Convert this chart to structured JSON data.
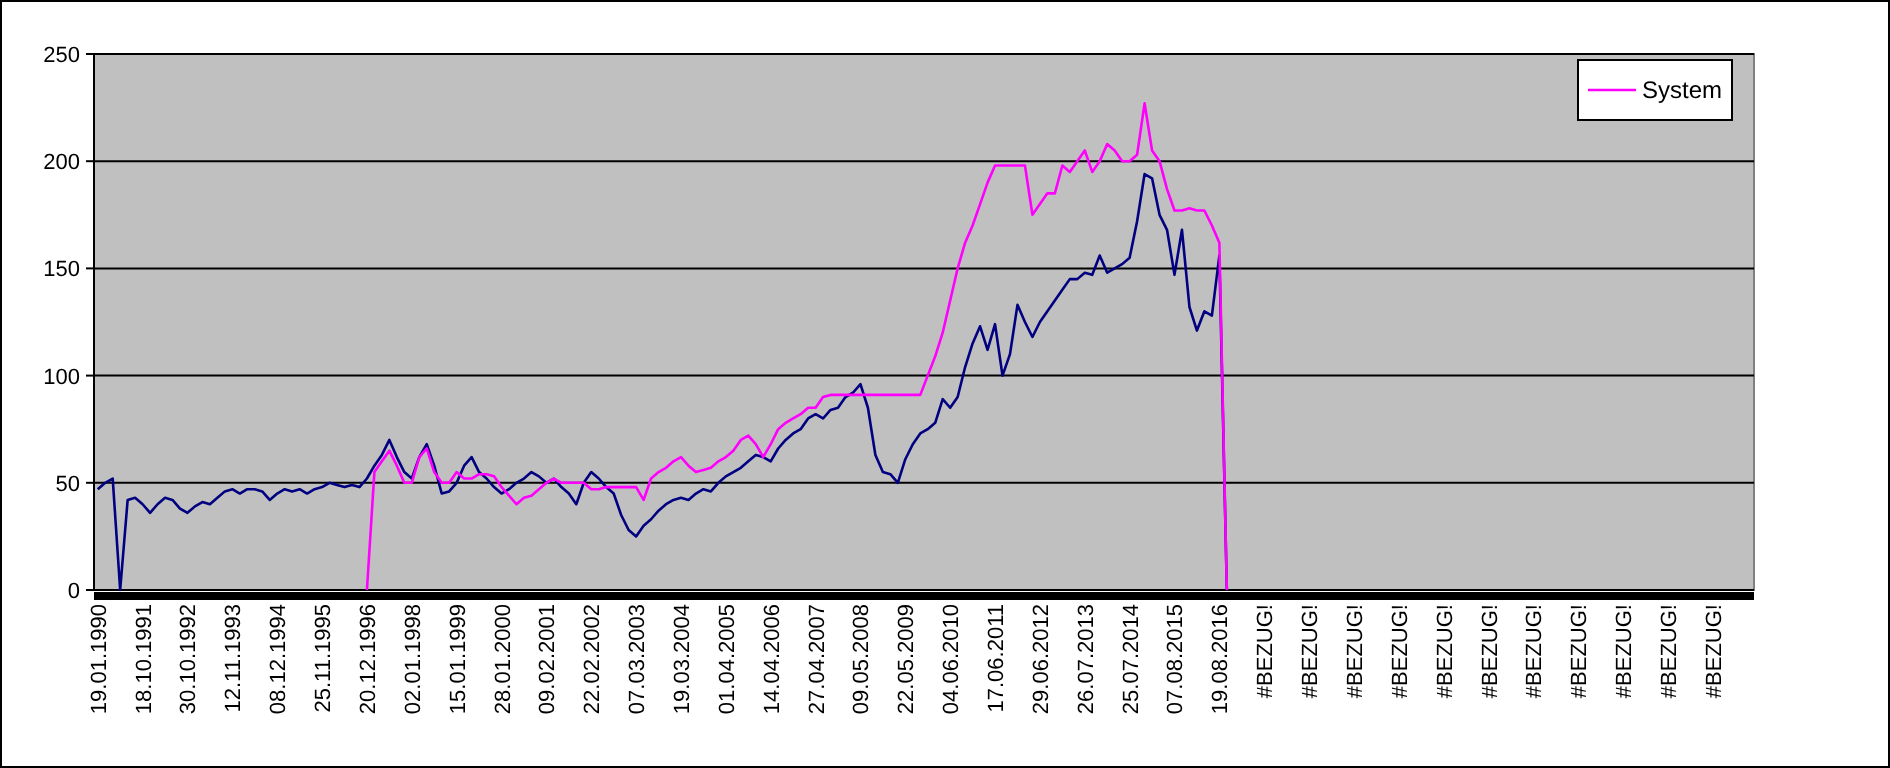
{
  "chart_data": {
    "type": "line",
    "categories": [
      "19.01.1990",
      null,
      null,
      null,
      null,
      null,
      "18.10.1991",
      null,
      null,
      null,
      null,
      null,
      "30.10.1992",
      null,
      null,
      null,
      null,
      null,
      "12.11.1993",
      null,
      null,
      null,
      null,
      null,
      "08.12.1994",
      null,
      null,
      null,
      null,
      null,
      "25.11.1995",
      null,
      null,
      null,
      null,
      null,
      "20.12.1996",
      null,
      null,
      null,
      null,
      null,
      "02.01.1998",
      null,
      null,
      null,
      null,
      null,
      "15.01.1999",
      null,
      null,
      null,
      null,
      null,
      "28.01.2000",
      null,
      null,
      null,
      null,
      null,
      "09.02.2001",
      null,
      null,
      null,
      null,
      null,
      "22.02.2002",
      null,
      null,
      null,
      null,
      null,
      "07.03.2003",
      null,
      null,
      null,
      null,
      null,
      "19.03.2004",
      null,
      null,
      null,
      null,
      null,
      "01.04.2005",
      null,
      null,
      null,
      null,
      null,
      "14.04.2006",
      null,
      null,
      null,
      null,
      null,
      "27.04.2007",
      null,
      null,
      null,
      null,
      null,
      "09.05.2008",
      null,
      null,
      null,
      null,
      null,
      "22.05.2009",
      null,
      null,
      null,
      null,
      null,
      "04.06.2010",
      null,
      null,
      null,
      null,
      null,
      "17.06.2011",
      null,
      null,
      null,
      null,
      null,
      "29.06.2012",
      null,
      null,
      null,
      null,
      null,
      "26.07.2013",
      null,
      null,
      null,
      null,
      null,
      "25.07.2014",
      null,
      null,
      null,
      null,
      null,
      "07.08.2015",
      null,
      null,
      null,
      null,
      null,
      "19.08.2016",
      null,
      null,
      null,
      null,
      null,
      "#BEZUG!",
      null,
      null,
      null,
      null,
      null,
      "#BEZUG!",
      null,
      null,
      null,
      null,
      null,
      "#BEZUG!",
      null,
      null,
      null,
      null,
      null,
      "#BEZUG!",
      null,
      null,
      null,
      null,
      null,
      "#BEZUG!",
      null,
      null,
      null,
      null,
      null,
      "#BEZUG!",
      null,
      null,
      null,
      null,
      null,
      "#BEZUG!",
      null,
      null,
      null,
      null,
      null,
      "#BEZUG!",
      null,
      null,
      null,
      null,
      null,
      "#BEZUG!",
      null,
      null,
      null,
      null,
      null,
      "#BEZUG!",
      null,
      null,
      null,
      null,
      null,
      "#BEZUG!",
      null,
      null,
      null,
      null,
      null
    ],
    "series": [
      {
        "color": "#000080",
        "values": [
          47,
          50,
          52,
          0,
          42,
          43,
          40,
          36,
          40,
          43,
          42,
          38,
          36,
          39,
          41,
          40,
          43,
          46,
          47,
          45,
          47,
          47,
          46,
          42,
          45,
          47,
          46,
          47,
          45,
          47,
          48,
          50,
          49,
          48,
          49,
          48,
          52,
          58,
          63,
          70,
          62,
          55,
          52,
          62,
          68,
          58,
          45,
          46,
          50,
          58,
          62,
          55,
          52,
          48,
          45,
          47,
          50,
          52,
          55,
          53,
          50,
          52,
          48,
          45,
          40,
          50,
          55,
          52,
          48,
          45,
          35,
          28,
          25,
          30,
          33,
          37,
          40,
          42,
          43,
          42,
          45,
          47,
          46,
          50,
          53,
          55,
          57,
          60,
          63,
          62,
          60,
          66,
          70,
          73,
          75,
          80,
          82,
          80,
          84,
          85,
          90,
          92,
          96,
          85,
          63,
          55,
          54,
          50,
          61,
          68,
          73,
          75,
          78,
          89,
          85,
          90,
          104,
          115,
          123,
          112,
          124,
          100,
          110,
          133,
          125,
          118,
          125,
          130,
          135,
          140,
          145,
          145,
          148,
          147,
          156,
          148,
          150,
          152,
          155,
          172,
          194,
          192,
          175,
          168,
          147,
          168,
          132,
          121,
          130,
          128,
          156,
          0,
          null,
          null,
          null,
          null,
          null,
          null,
          null,
          null,
          null,
          null,
          null,
          null,
          null,
          null,
          null,
          null,
          null,
          null,
          null,
          null,
          null,
          null,
          null,
          null,
          null,
          null,
          null,
          null,
          null,
          null,
          null,
          null,
          null,
          null,
          null,
          null,
          null,
          null,
          null,
          null,
          null,
          null,
          null,
          null,
          null,
          null,
          null,
          null,
          null,
          null,
          null,
          null,
          null,
          null,
          null,
          null,
          null,
          null,
          null,
          null,
          null,
          null,
          null,
          null,
          null,
          null,
          null,
          null,
          null,
          null
        ]
      },
      {
        "name": "System",
        "color": "#ff00ff",
        "values": [
          null,
          null,
          null,
          null,
          null,
          null,
          null,
          null,
          null,
          null,
          null,
          null,
          null,
          null,
          null,
          null,
          null,
          null,
          null,
          null,
          null,
          null,
          null,
          null,
          null,
          null,
          null,
          null,
          null,
          null,
          null,
          null,
          null,
          null,
          null,
          null,
          0,
          55,
          60,
          65,
          58,
          50,
          50,
          62,
          66,
          55,
          50,
          50,
          55,
          52,
          52,
          54,
          54,
          53,
          48,
          44,
          40,
          43,
          44,
          47,
          50,
          52,
          50,
          50,
          50,
          50,
          47,
          47,
          48,
          48,
          48,
          48,
          48,
          42,
          52,
          55,
          57,
          60,
          62,
          58,
          55,
          56,
          57,
          60,
          62,
          65,
          70,
          72,
          68,
          62,
          68,
          75,
          78,
          80,
          82,
          85,
          85,
          90,
          91,
          91,
          91,
          91,
          91,
          91,
          91,
          91,
          91,
          91,
          91,
          91,
          91,
          100,
          109,
          120,
          135,
          150,
          162,
          170,
          180,
          190,
          198,
          198,
          198,
          198,
          198,
          175,
          180,
          185,
          185,
          198,
          195,
          200,
          205,
          195,
          200,
          208,
          205,
          200,
          200,
          203,
          227,
          205,
          200,
          187,
          177,
          177,
          178,
          177,
          177,
          170,
          162,
          0,
          null,
          null,
          null,
          null,
          null,
          null,
          null,
          null,
          null,
          null,
          null,
          null,
          null,
          null,
          null,
          null,
          null,
          null,
          null,
          null,
          null,
          null,
          null,
          null,
          null,
          null,
          null,
          null,
          null,
          null,
          null,
          null,
          null,
          null,
          null,
          null,
          null,
          null,
          null,
          null,
          null,
          null,
          null,
          null,
          null,
          null,
          null,
          null,
          null,
          null,
          null,
          null,
          null,
          null,
          null,
          null,
          null,
          null,
          null,
          null,
          null,
          null,
          null,
          null,
          null,
          null,
          null,
          null,
          null,
          null
        ]
      }
    ],
    "ylim": [
      0,
      250
    ],
    "yticks": [
      0,
      50,
      100,
      150,
      200,
      250
    ],
    "grid": "y",
    "legend": "top right"
  }
}
